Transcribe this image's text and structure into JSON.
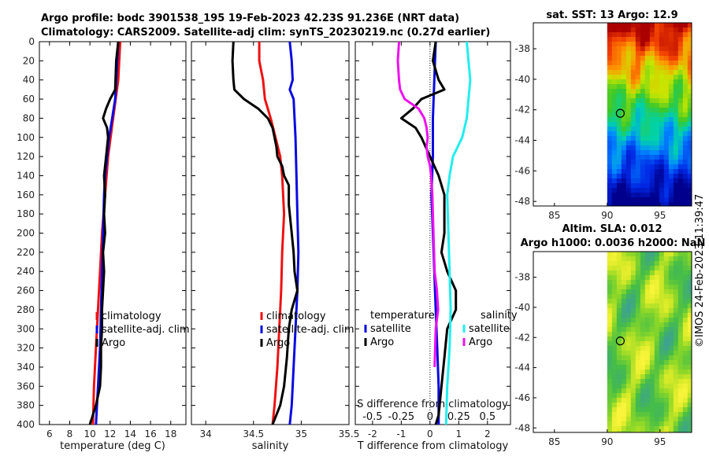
{
  "header": {
    "line1": "Argo profile: bodc 3901538_195 19-Feb-2023 42.23S 91.236E (NRT data)",
    "line2": "Climatology: CARS2009. Satellite-adj clim: synTS_20230219.nc (0.27d earlier)"
  },
  "watermark": "©IMOS 24-Feb-2023 11:39:47",
  "colors": {
    "climatology": "#ee1111",
    "satellite": "#0a0ae0",
    "argo": "#000000",
    "sal_satellite": "#22eeee",
    "sal_argo": "#ee11ee"
  },
  "chart_data": [
    {
      "id": "temperature",
      "type": "line",
      "xlabel": "temperature (deg C)",
      "xlim": [
        5,
        19.5
      ],
      "xticks": [
        6,
        8,
        10,
        12,
        14,
        16,
        18
      ],
      "xtick_labels": [
        "6",
        "8",
        "10",
        "12",
        "14",
        "16",
        "18"
      ],
      "ylim": [
        0,
        400
      ],
      "yticks": [
        0,
        20,
        40,
        60,
        80,
        100,
        120,
        140,
        160,
        180,
        200,
        220,
        240,
        260,
        280,
        300,
        320,
        340,
        360,
        380,
        400
      ],
      "legend": [
        "climatology",
        "satellite-adj. clim",
        "Argo"
      ],
      "series": [
        {
          "name": "climatology",
          "color": "#ee1111",
          "points": [
            [
              13.0,
              0
            ],
            [
              12.8,
              40
            ],
            [
              12.3,
              80
            ],
            [
              11.8,
              120
            ],
            [
              11.5,
              160
            ],
            [
              11.2,
              200
            ],
            [
              11.0,
              240
            ],
            [
              10.8,
              280
            ],
            [
              10.6,
              320
            ],
            [
              10.4,
              360
            ],
            [
              10.3,
              400
            ]
          ]
        },
        {
          "name": "satellite-adj. clim",
          "color": "#0a0ae0",
          "points": [
            [
              12.8,
              0
            ],
            [
              12.7,
              20
            ],
            [
              12.6,
              40
            ],
            [
              12.5,
              60
            ],
            [
              12.2,
              80
            ],
            [
              11.9,
              100
            ],
            [
              11.7,
              120
            ],
            [
              11.5,
              140
            ],
            [
              11.4,
              160
            ],
            [
              11.3,
              200
            ],
            [
              11.2,
              240
            ],
            [
              11.1,
              280
            ],
            [
              11.0,
              320
            ],
            [
              10.8,
              360
            ],
            [
              10.6,
              400
            ]
          ]
        },
        {
          "name": "Argo",
          "color": "#000000",
          "points": [
            [
              12.8,
              0
            ],
            [
              12.6,
              20
            ],
            [
              12.5,
              50
            ],
            [
              12.0,
              60
            ],
            [
              11.6,
              70
            ],
            [
              11.3,
              80
            ],
            [
              11.7,
              90
            ],
            [
              11.8,
              100
            ],
            [
              11.6,
              120
            ],
            [
              11.4,
              140
            ],
            [
              11.5,
              160
            ],
            [
              11.4,
              180
            ],
            [
              11.5,
              200
            ],
            [
              11.3,
              220
            ],
            [
              11.4,
              240
            ],
            [
              11.3,
              260
            ],
            [
              11.2,
              280
            ],
            [
              11.2,
              300
            ],
            [
              11.1,
              320
            ],
            [
              11.1,
              340
            ],
            [
              11.0,
              360
            ],
            [
              10.6,
              380
            ],
            [
              10.0,
              400
            ]
          ]
        }
      ]
    },
    {
      "id": "salinity",
      "type": "line",
      "xlabel": "salinity",
      "xlim": [
        33.85,
        35.5
      ],
      "xticks": [
        34,
        34.5,
        35,
        35.5
      ],
      "xtick_labels": [
        "34",
        "34.5",
        "35",
        "35.5"
      ],
      "ylim": [
        0,
        400
      ],
      "legend": [
        "climatology",
        "satellite-adj. clim",
        "Argo"
      ],
      "series": [
        {
          "name": "climatology",
          "color": "#ee1111",
          "points": [
            [
              34.56,
              0
            ],
            [
              34.56,
              20
            ],
            [
              34.6,
              40
            ],
            [
              34.62,
              60
            ],
            [
              34.68,
              80
            ],
            [
              34.73,
              100
            ],
            [
              34.78,
              120
            ],
            [
              34.8,
              140
            ],
            [
              34.82,
              180
            ],
            [
              34.8,
              220
            ],
            [
              34.79,
              260
            ],
            [
              34.77,
              300
            ],
            [
              34.75,
              340
            ],
            [
              34.72,
              380
            ],
            [
              34.7,
              400
            ]
          ]
        },
        {
          "name": "satellite-adj. clim",
          "color": "#0a0ae0",
          "points": [
            [
              34.88,
              0
            ],
            [
              34.9,
              20
            ],
            [
              34.91,
              40
            ],
            [
              34.88,
              50
            ],
            [
              34.92,
              60
            ],
            [
              34.93,
              80
            ],
            [
              34.94,
              100
            ],
            [
              34.95,
              140
            ],
            [
              34.96,
              180
            ],
            [
              34.97,
              220
            ],
            [
              34.96,
              260
            ],
            [
              34.94,
              300
            ],
            [
              34.92,
              340
            ],
            [
              34.9,
              380
            ],
            [
              34.88,
              400
            ]
          ]
        },
        {
          "name": "Argo",
          "color": "#000000",
          "points": [
            [
              34.29,
              0
            ],
            [
              34.28,
              20
            ],
            [
              34.29,
              40
            ],
            [
              34.3,
              50
            ],
            [
              34.4,
              60
            ],
            [
              34.55,
              70
            ],
            [
              34.65,
              80
            ],
            [
              34.7,
              90
            ],
            [
              34.72,
              100
            ],
            [
              34.74,
              110
            ],
            [
              34.75,
              120
            ],
            [
              34.8,
              130
            ],
            [
              34.82,
              140
            ],
            [
              34.87,
              150
            ],
            [
              34.87,
              170
            ],
            [
              34.9,
              200
            ],
            [
              34.92,
              220
            ],
            [
              34.93,
              240
            ],
            [
              34.96,
              260
            ],
            [
              34.9,
              280
            ],
            [
              34.87,
              300
            ],
            [
              34.85,
              330
            ],
            [
              34.82,
              360
            ],
            [
              34.78,
              380
            ],
            [
              34.7,
              400
            ]
          ]
        }
      ]
    },
    {
      "id": "difference",
      "type": "line",
      "xlabel": "T difference from climatology",
      "xlim": [
        -2.6,
        2.8
      ],
      "xticks": [
        -2,
        -1,
        0,
        1,
        2
      ],
      "xtick_labels": [
        "-2",
        "-1",
        "0",
        "1",
        "2"
      ],
      "top_axis_label": "S difference from climatology",
      "s_xlim": [
        -0.65,
        0.7
      ],
      "s_xticks": [
        -0.5,
        -0.25,
        0,
        0.25,
        0.5
      ],
      "s_xtick_labels": [
        "-0.5",
        "-0.25",
        "0",
        "0.25",
        "0.5"
      ],
      "ylim": [
        0,
        400
      ],
      "legend_left_title": "temperature",
      "legend_right_title": "salinity",
      "legend_left": [
        "satellite",
        "Argo"
      ],
      "legend_right": [
        "satellite",
        "Argo"
      ],
      "series": [
        {
          "name": "temperature satellite",
          "axis": "T",
          "color": "#0a0ae0",
          "points": [
            [
              0.2,
              0
            ],
            [
              0.15,
              40
            ],
            [
              0.1,
              80
            ],
            [
              0.1,
              120
            ],
            [
              0.05,
              160
            ],
            [
              0.1,
              200
            ],
            [
              0.15,
              240
            ],
            [
              0.2,
              280
            ],
            [
              0.25,
              320
            ],
            [
              0.3,
              360
            ],
            [
              0.3,
              400
            ]
          ]
        },
        {
          "name": "temperature Argo",
          "axis": "T",
          "color": "#000000",
          "points": [
            [
              0.2,
              0
            ],
            [
              0.1,
              20
            ],
            [
              0.3,
              40
            ],
            [
              0.5,
              50
            ],
            [
              -0.3,
              60
            ],
            [
              -0.6,
              70
            ],
            [
              -1.0,
              80
            ],
            [
              -0.5,
              90
            ],
            [
              -0.3,
              100
            ],
            [
              0.0,
              120
            ],
            [
              0.3,
              140
            ],
            [
              0.5,
              160
            ],
            [
              0.5,
              200
            ],
            [
              0.4,
              220
            ],
            [
              0.6,
              240
            ],
            [
              0.9,
              260
            ],
            [
              0.9,
              280
            ],
            [
              0.6,
              300
            ],
            [
              0.5,
              330
            ],
            [
              0.4,
              360
            ],
            [
              0.3,
              390
            ],
            [
              0.2,
              400
            ]
          ]
        },
        {
          "name": "salinity satellite",
          "axis": "S",
          "color": "#22eeee",
          "points": [
            [
              0.32,
              0
            ],
            [
              0.35,
              40
            ],
            [
              0.32,
              80
            ],
            [
              0.28,
              100
            ],
            [
              0.2,
              120
            ],
            [
              0.17,
              140
            ],
            [
              0.15,
              160
            ],
            [
              0.16,
              200
            ],
            [
              0.17,
              240
            ],
            [
              0.18,
              280
            ],
            [
              0.17,
              320
            ],
            [
              0.15,
              360
            ],
            [
              0.14,
              400
            ]
          ]
        },
        {
          "name": "salinity Argo",
          "axis": "S",
          "color": "#ee11ee",
          "points": [
            [
              -0.27,
              0
            ],
            [
              -0.28,
              20
            ],
            [
              -0.27,
              40
            ],
            [
              -0.26,
              50
            ],
            [
              -0.22,
              60
            ],
            [
              -0.1,
              70
            ],
            [
              -0.05,
              80
            ],
            [
              -0.03,
              90
            ],
            [
              -0.02,
              100
            ],
            [
              -0.03,
              110
            ],
            [
              -0.02,
              120
            ],
            [
              0.0,
              130
            ],
            [
              0.01,
              140
            ],
            [
              0.02,
              160
            ],
            [
              0.03,
              200
            ],
            [
              0.04,
              240
            ],
            [
              0.06,
              260
            ],
            [
              0.07,
              280
            ],
            [
              0.05,
              300
            ],
            [
              0.04,
              340
            ]
          ]
        }
      ]
    },
    {
      "id": "sst-map",
      "type": "heatmap",
      "title": "sat. SST: 13 Argo: 12.9",
      "xlim": [
        83,
        98
      ],
      "xticks": [
        85,
        90,
        95
      ],
      "xtick_labels": [
        "85",
        "90",
        "95"
      ],
      "ylim": [
        -48.3,
        -36.3
      ],
      "yticks": [
        -38,
        -40,
        -42,
        -44,
        -46,
        -48
      ],
      "ytick_labels": [
        "-38",
        "-40",
        "-42",
        "-44",
        "-46",
        "-48"
      ],
      "argo_lon": 91.236,
      "argo_lat": -42.23
    },
    {
      "id": "sla-map",
      "type": "heatmap",
      "title": "Altim. SLA: 0.012",
      "subtitle": "Argo h1000: 0.0036 h2000: NaN",
      "xlim": [
        83,
        98
      ],
      "xticks": [
        85,
        90,
        95
      ],
      "xtick_labels": [
        "85",
        "90",
        "95"
      ],
      "ylim": [
        -48.3,
        -36.3
      ],
      "yticks": [
        -38,
        -40,
        -42,
        -44,
        -46,
        -48
      ],
      "ytick_labels": [
        "-38",
        "-40",
        "-42",
        "-44",
        "-46",
        "-48"
      ],
      "argo_lon": 91.236,
      "argo_lat": -42.23
    }
  ]
}
